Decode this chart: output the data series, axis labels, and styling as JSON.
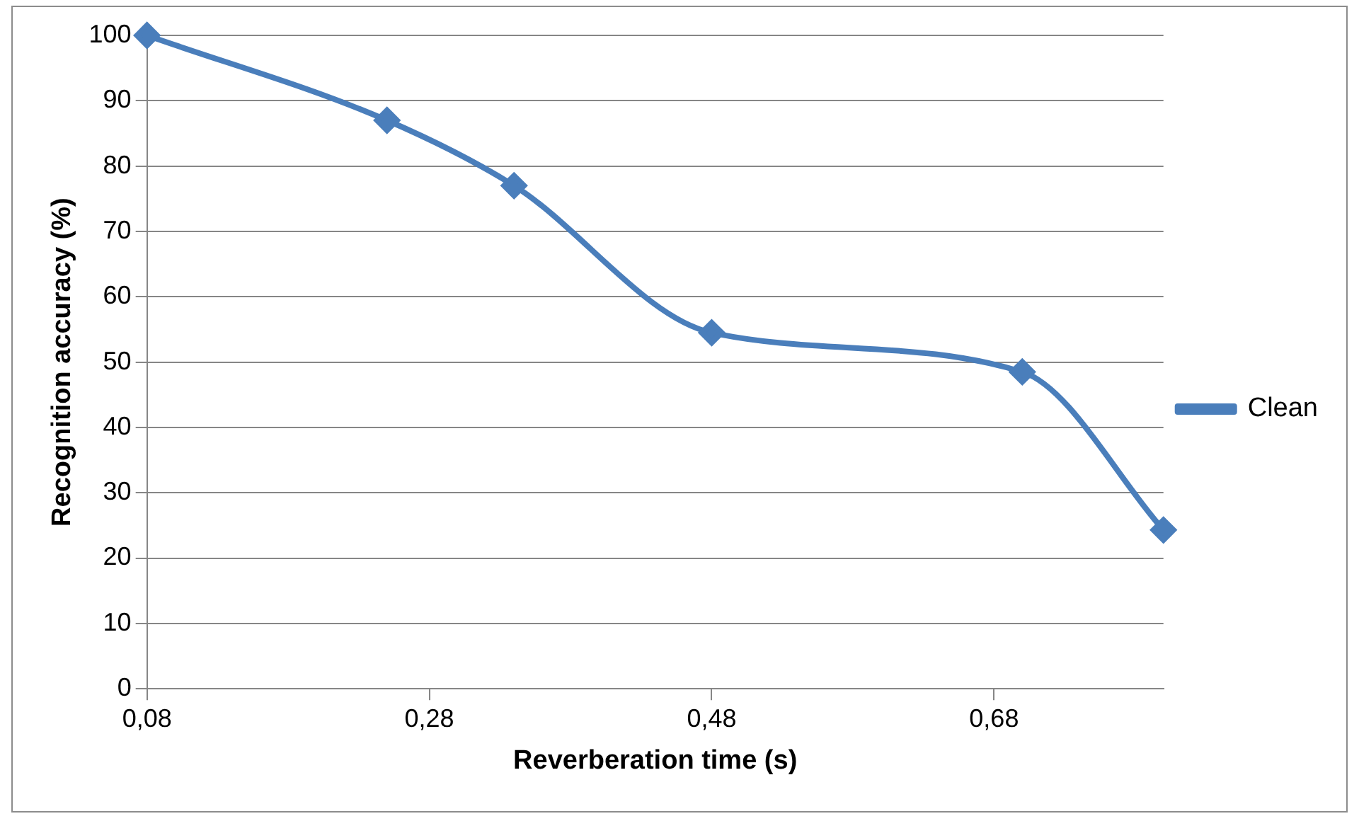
{
  "chart_data": {
    "type": "line",
    "xlabel": "Reverberation time (s)",
    "ylabel": "Recognition accuracy (%)",
    "x": [
      0.08,
      0.25,
      0.34,
      0.48,
      0.7,
      0.8
    ],
    "series": [
      {
        "name": "Clean",
        "color": "#4a7ebb",
        "values": [
          100,
          87,
          77,
          54.5,
          48.5,
          24.3
        ]
      }
    ],
    "xlim": [
      0.08,
      0.8
    ],
    "xticks": [
      {
        "value": 0.08,
        "label": "0,08"
      },
      {
        "value": 0.28,
        "label": "0,28"
      },
      {
        "value": 0.48,
        "label": "0,48"
      },
      {
        "value": 0.68,
        "label": "0,68"
      }
    ],
    "ylim": [
      0,
      100
    ],
    "yticks": [
      0,
      10,
      20,
      30,
      40,
      50,
      60,
      70,
      80,
      90,
      100
    ],
    "grid": "y",
    "legend": "right",
    "marker": "diamond",
    "line_style": "solid"
  }
}
